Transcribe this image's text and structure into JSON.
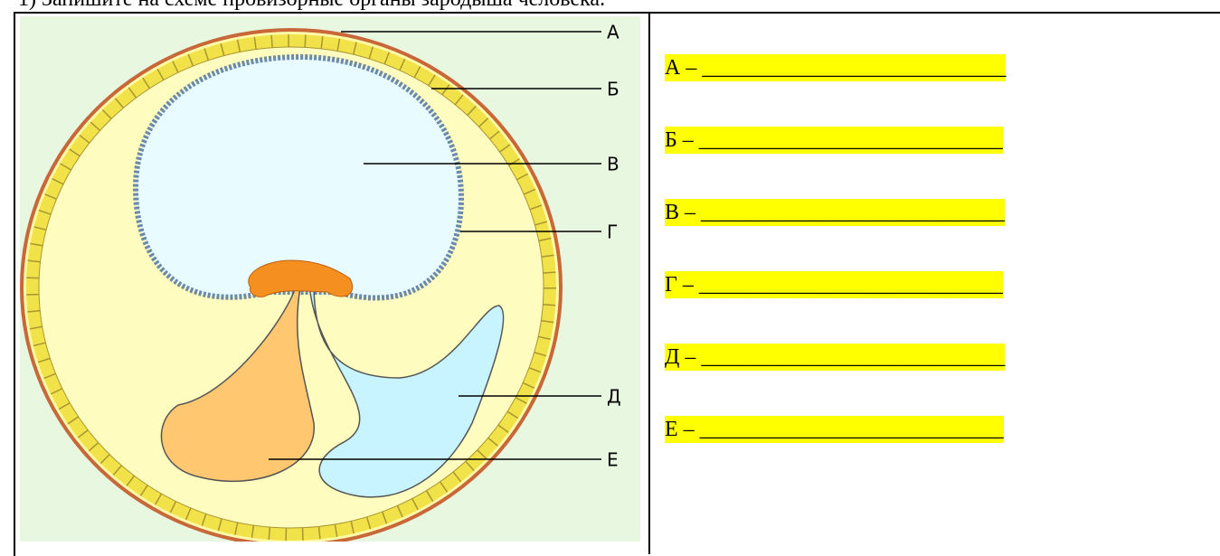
{
  "header": {
    "title": "1) Запишите на схеме провизорные органы зародыша человека."
  },
  "diagram": {
    "labels": [
      "А",
      "Б",
      "В",
      "Г",
      "Д",
      "Е"
    ]
  },
  "answers": [
    "А – ____________________________",
    "Б – ____________________________",
    "В – ____________________________",
    "Г – ____________________________",
    "Д – ____________________________",
    "Е – ____________________________"
  ]
}
